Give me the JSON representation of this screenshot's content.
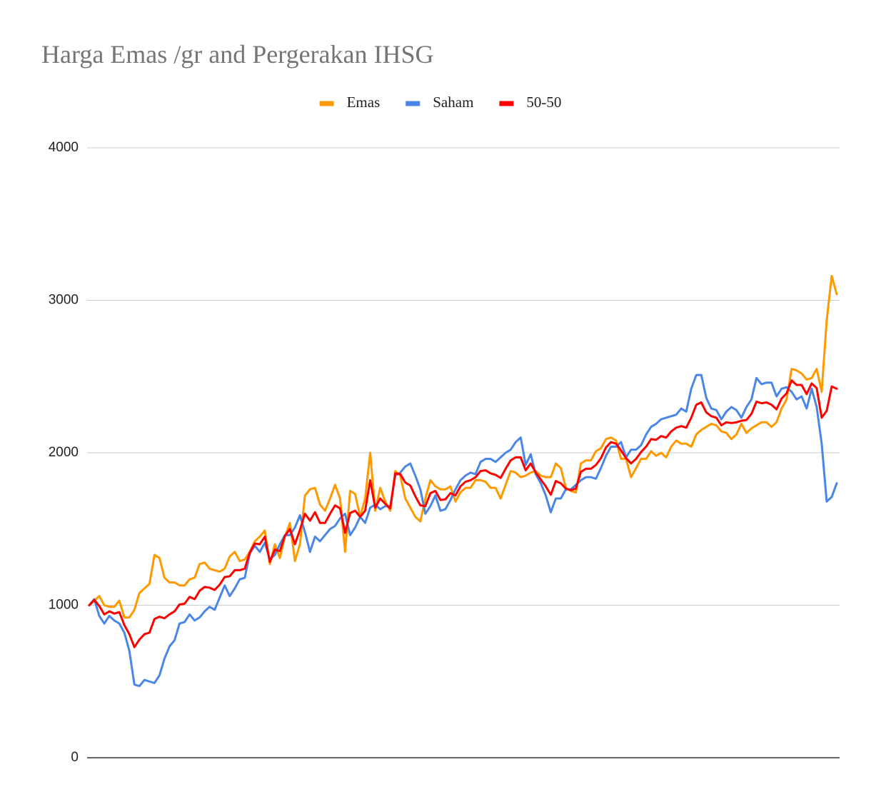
{
  "chart_data": {
    "type": "line",
    "title": "Harga Emas /gr and Pergerakan IHSG",
    "categories": [
      null,
      null,
      null,
      null,
      null,
      null,
      null,
      null,
      null,
      null,
      null,
      null,
      null,
      null,
      null,
      null,
      null,
      null,
      null,
      null,
      null,
      null,
      null,
      null,
      null,
      null,
      null,
      null,
      null,
      null,
      null,
      null,
      null,
      null,
      null,
      null,
      null,
      null,
      null,
      null,
      null,
      null,
      null,
      null,
      null,
      null,
      null,
      null,
      null,
      null,
      null,
      null,
      null,
      null,
      null,
      null,
      null,
      null,
      null,
      null,
      null,
      null,
      null,
      null,
      null,
      null,
      null,
      null,
      null,
      null,
      null,
      null,
      null,
      null,
      null,
      null,
      null,
      null,
      null,
      null,
      null,
      null,
      null,
      null,
      null,
      null,
      null,
      null,
      null,
      null,
      null,
      null,
      null,
      null,
      null,
      null,
      null,
      null,
      null,
      null,
      null,
      null,
      null,
      null,
      null,
      null,
      null,
      null,
      null,
      null,
      null,
      null,
      null,
      null,
      null,
      null,
      null,
      null,
      null,
      null,
      null,
      null,
      null,
      null,
      null,
      null,
      null,
      null,
      null,
      null,
      null,
      null,
      null,
      null,
      null,
      null,
      null,
      null,
      null,
      null,
      null,
      null,
      null,
      null,
      null,
      null,
      null,
      null,
      null,
      null
    ],
    "series": [
      {
        "name": "Emas",
        "color": "#ff9900",
        "values": [
          1000,
          1030,
          1060,
          1000,
          990,
          990,
          1030,
          920,
          920,
          970,
          1080,
          1110,
          1140,
          1330,
          1310,
          1180,
          1150,
          1150,
          1130,
          1130,
          1170,
          1180,
          1270,
          1280,
          1240,
          1230,
          1220,
          1240,
          1320,
          1350,
          1290,
          1300,
          1350,
          1420,
          1450,
          1490,
          1270,
          1400,
          1310,
          1450,
          1540,
          1290,
          1400,
          1720,
          1760,
          1770,
          1660,
          1620,
          1700,
          1790,
          1700,
          1350,
          1750,
          1730,
          1580,
          1700,
          2000,
          1620,
          1770,
          1680,
          1620,
          1880,
          1850,
          1700,
          1640,
          1580,
          1550,
          1700,
          1820,
          1780,
          1760,
          1760,
          1780,
          1680,
          1740,
          1770,
          1770,
          1820,
          1820,
          1810,
          1770,
          1770,
          1700,
          1790,
          1880,
          1870,
          1840,
          1850,
          1870,
          1880,
          1850,
          1840,
          1840,
          1930,
          1900,
          1770,
          1750,
          1740,
          1930,
          1950,
          1950,
          2010,
          2030,
          2090,
          2100,
          2080,
          1960,
          1960,
          1840,
          1900,
          1960,
          1960,
          2010,
          1980,
          2000,
          1970,
          2040,
          2080,
          2060,
          2060,
          2040,
          2120,
          2150,
          2170,
          2190,
          2180,
          2140,
          2130,
          2090,
          2120,
          2190,
          2130,
          2160,
          2180,
          2200,
          2200,
          2170,
          2200,
          2290,
          2350,
          2550,
          2540,
          2520,
          2480,
          2490,
          2550,
          2400,
          2870,
          3160,
          3040
        ]
      },
      {
        "name": "Saham",
        "color": "#4a86e8",
        "values": [
          1000,
          1040,
          930,
          880,
          930,
          900,
          880,
          820,
          700,
          480,
          470,
          510,
          500,
          490,
          540,
          650,
          730,
          770,
          880,
          890,
          940,
          900,
          920,
          960,
          990,
          970,
          1050,
          1130,
          1060,
          1110,
          1170,
          1180,
          1340,
          1390,
          1350,
          1410,
          1300,
          1330,
          1400,
          1460,
          1460,
          1510,
          1590,
          1480,
          1350,
          1450,
          1420,
          1460,
          1500,
          1520,
          1570,
          1600,
          1460,
          1510,
          1580,
          1540,
          1640,
          1660,
          1630,
          1650,
          1650,
          1850,
          1870,
          1910,
          1930,
          1850,
          1760,
          1600,
          1650,
          1720,
          1620,
          1630,
          1690,
          1760,
          1820,
          1850,
          1870,
          1860,
          1940,
          1960,
          1960,
          1940,
          1970,
          2000,
          2020,
          2070,
          2100,
          1920,
          1990,
          1860,
          1800,
          1720,
          1610,
          1700,
          1700,
          1760,
          1760,
          1790,
          1820,
          1840,
          1840,
          1830,
          1900,
          1980,
          2040,
          2040,
          2070,
          1970,
          2020,
          2020,
          2050,
          2120,
          2170,
          2190,
          2220,
          2230,
          2240,
          2250,
          2290,
          2270,
          2420,
          2510,
          2510,
          2360,
          2290,
          2280,
          2220,
          2270,
          2300,
          2280,
          2230,
          2300,
          2350,
          2490,
          2450,
          2460,
          2460,
          2370,
          2420,
          2430,
          2400,
          2350,
          2370,
          2290,
          2420,
          2300,
          2060,
          1680,
          1710,
          1800
        ]
      },
      {
        "name": "50-50",
        "color": "#ff0000",
        "values": [
          1000,
          1035,
          995,
          940,
          960,
          945,
          955,
          870,
          810,
          725,
          775,
          810,
          820,
          910,
          925,
          915,
          940,
          960,
          1005,
          1010,
          1055,
          1040,
          1095,
          1120,
          1115,
          1100,
          1135,
          1185,
          1190,
          1230,
          1230,
          1240,
          1345,
          1405,
          1400,
          1450,
          1285,
          1365,
          1355,
          1455,
          1500,
          1400,
          1495,
          1600,
          1555,
          1610,
          1540,
          1540,
          1600,
          1655,
          1635,
          1475,
          1605,
          1620,
          1580,
          1620,
          1820,
          1640,
          1700,
          1665,
          1635,
          1865,
          1860,
          1805,
          1785,
          1715,
          1655,
          1650,
          1735,
          1750,
          1690,
          1695,
          1735,
          1720,
          1780,
          1810,
          1820,
          1840,
          1880,
          1885,
          1865,
          1855,
          1835,
          1895,
          1950,
          1970,
          1970,
          1885,
          1930,
          1870,
          1825,
          1780,
          1725,
          1815,
          1800,
          1765,
          1755,
          1765,
          1875,
          1895,
          1895,
          1920,
          1965,
          2035,
          2070,
          2060,
          2015,
          1965,
          1930,
          1960,
          2005,
          2040,
          2090,
          2085,
          2110,
          2100,
          2140,
          2165,
          2175,
          2165,
          2230,
          2315,
          2330,
          2265,
          2240,
          2230,
          2180,
          2200,
          2195,
          2200,
          2210,
          2215,
          2255,
          2335,
          2325,
          2330,
          2315,
          2285,
          2355,
          2390,
          2475,
          2445,
          2445,
          2385,
          2455,
          2425,
          2230,
          2275,
          2435,
          2420
        ]
      }
    ],
    "ylim": [
      0,
      4000
    ],
    "yticks": [
      0,
      1000,
      2000,
      3000,
      4000
    ],
    "grid": true,
    "legend": "top"
  }
}
